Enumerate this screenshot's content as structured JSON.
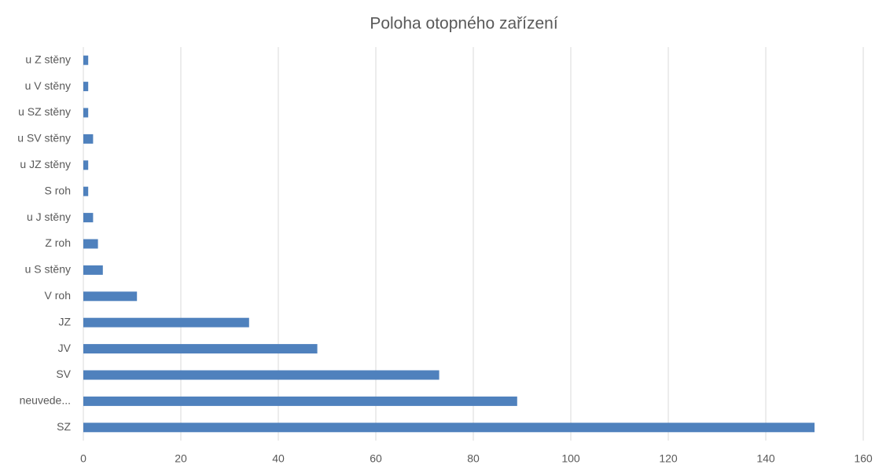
{
  "chart_data": {
    "type": "hbar",
    "title": "Poloha otopného zařízení",
    "categories": [
      "SZ",
      "neuvede...",
      "SV",
      "JV",
      "JZ",
      "V roh",
      "u S stěny",
      "Z roh",
      "u J stěny",
      "S roh",
      "u JZ stěny",
      "u SV stěny",
      "u SZ stěny",
      "u V stěny",
      "u Z stěny"
    ],
    "values": [
      150,
      89,
      73,
      48,
      34,
      11,
      4,
      3,
      2,
      1,
      1,
      2,
      1,
      1,
      1
    ],
    "color": "#4f81bd",
    "xlim": [
      0,
      160
    ],
    "xticks": [
      0,
      20,
      40,
      60,
      80,
      100,
      120,
      140,
      160
    ],
    "grid": true
  }
}
